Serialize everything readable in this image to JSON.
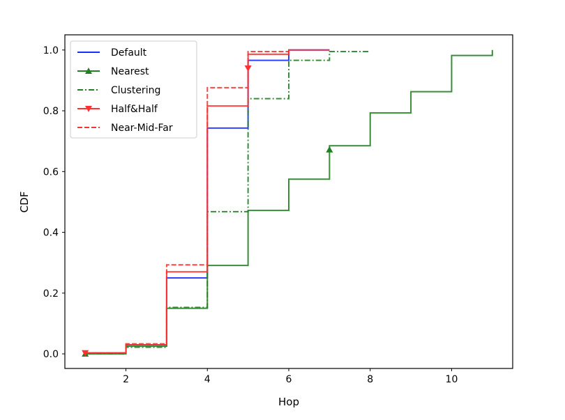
{
  "chart_data": {
    "type": "line",
    "drawstyle": "steps-post",
    "title": "",
    "xlabel": "Hop",
    "ylabel": "CDF",
    "xlim": [
      0.5,
      11.5
    ],
    "ylim": [
      -0.048,
      1.05
    ],
    "xticks": [
      2,
      4,
      6,
      8,
      10
    ],
    "xtick_labels": [
      "2",
      "4",
      "6",
      "8",
      "10"
    ],
    "yticks": [
      0.0,
      0.2,
      0.4,
      0.6,
      0.8,
      1.0
    ],
    "ytick_labels": [
      "0.0",
      "0.2",
      "0.4",
      "0.6",
      "0.8",
      "1.0"
    ],
    "grid": false,
    "legend_placement": "top-left",
    "series": [
      {
        "name": "Default",
        "color": "#1a2cff",
        "dash": "solid",
        "marker": "none",
        "x": [
          1,
          2,
          3,
          4,
          5,
          6,
          7
        ],
        "y": [
          0.003,
          0.03,
          0.25,
          0.743,
          0.966,
          1.0,
          1.0
        ],
        "markers": []
      },
      {
        "name": "Nearest",
        "color": "#237f23",
        "dash": "solid",
        "marker": "triangle-up",
        "x": [
          1,
          2,
          3,
          4,
          5,
          6,
          7,
          8,
          9,
          10,
          11
        ],
        "y": [
          0.0,
          0.025,
          0.15,
          0.291,
          0.472,
          0.575,
          0.685,
          0.793,
          0.863,
          0.982,
          1.0
        ],
        "markers": [
          [
            1,
            0.0
          ],
          [
            7,
            0.672
          ]
        ]
      },
      {
        "name": "Clustering",
        "color": "#237f23",
        "dash": "dashdot",
        "marker": "none",
        "x": [
          1,
          2,
          3,
          4,
          5,
          6,
          7,
          8
        ],
        "y": [
          0.0,
          0.022,
          0.153,
          0.468,
          0.84,
          0.966,
          0.995,
          0.995
        ],
        "markers": []
      },
      {
        "name": "Half&Half",
        "color": "#ff3030",
        "dash": "solid",
        "marker": "triangle-down",
        "x": [
          1,
          2,
          3,
          4,
          5,
          6,
          7
        ],
        "y": [
          0.003,
          0.03,
          0.27,
          0.816,
          0.986,
          1.0,
          1.0
        ],
        "markers": [
          [
            1,
            0.003
          ],
          [
            5,
            0.94
          ]
        ]
      },
      {
        "name": "Near-Mid-Far",
        "color": "#ff3030",
        "dash": "dashed",
        "marker": "none",
        "x": [
          1,
          2,
          3,
          4,
          5,
          6
        ],
        "y": [
          0.003,
          0.033,
          0.293,
          0.876,
          0.995,
          1.0
        ],
        "markers": []
      }
    ]
  }
}
